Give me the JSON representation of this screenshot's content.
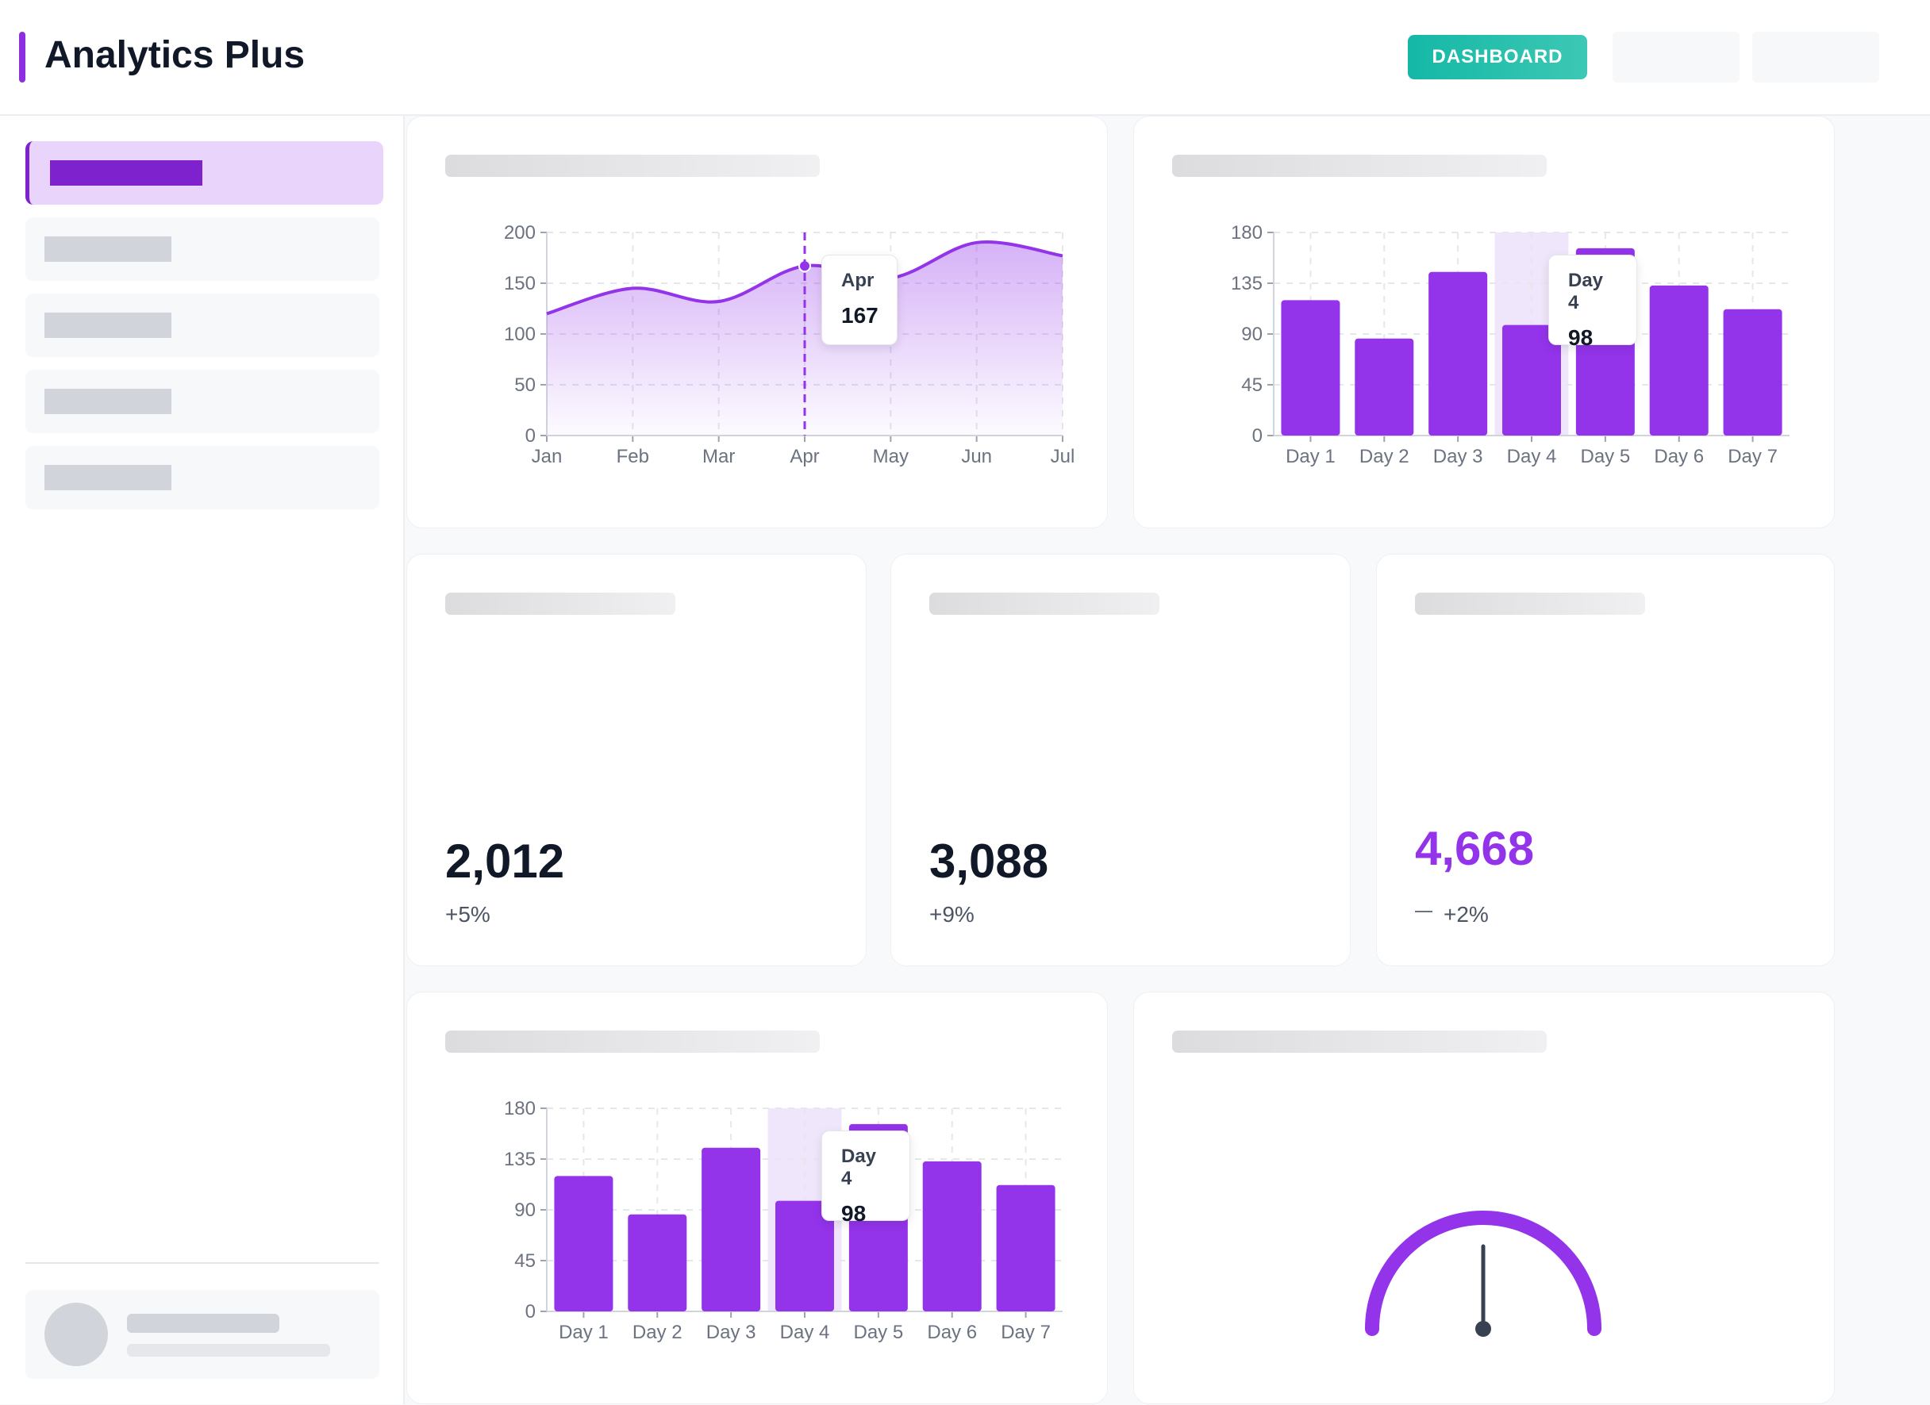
{
  "header": {
    "app_title": "Analytics Plus",
    "nav_active_label": "DASHBOARD"
  },
  "kpis": [
    {
      "value": "2,012",
      "change": "+5%"
    },
    {
      "value": "3,088",
      "change": "+9%"
    },
    {
      "value": "4,668",
      "change": "+2%",
      "trend_icon": "dash-icon"
    }
  ],
  "colors": {
    "accent": "#9333ea",
    "accent_dark": "#7e22ce",
    "nav_teal": "#14b8a6",
    "highlight": "#f0e6fb"
  },
  "chart_data": [
    {
      "type": "area",
      "title": "",
      "categories": [
        "Jan",
        "Feb",
        "Mar",
        "Apr",
        "May",
        "Jun",
        "Jul"
      ],
      "values": [
        120,
        145,
        132,
        167,
        155,
        190,
        177
      ],
      "y_ticks": [
        "0",
        "50",
        "100",
        "150",
        "200"
      ],
      "ylim": [
        0,
        200
      ],
      "grid": true,
      "tooltip": {
        "label": "Apr",
        "value": "167"
      }
    },
    {
      "type": "bar",
      "title": "",
      "categories": [
        "Day 1",
        "Day 2",
        "Day 3",
        "Day 4",
        "Day 5",
        "Day 6",
        "Day 7"
      ],
      "values": [
        120,
        86,
        145,
        98,
        166,
        133,
        112
      ],
      "y_ticks": [
        "0",
        "45",
        "90",
        "135",
        "180"
      ],
      "ylim": [
        0,
        180
      ],
      "grid": true,
      "highlight_index": 3,
      "tooltip": {
        "label": "Day 4",
        "value": "98"
      }
    },
    {
      "type": "bar",
      "title": "",
      "categories": [
        "Day 1",
        "Day 2",
        "Day 3",
        "Day 4",
        "Day 5",
        "Day 6",
        "Day 7"
      ],
      "values": [
        120,
        86,
        145,
        98,
        166,
        133,
        112
      ],
      "y_ticks": [
        "0",
        "45",
        "90",
        "135",
        "180"
      ],
      "ylim": [
        0,
        180
      ],
      "grid": true,
      "highlight_index": 3,
      "tooltip": {
        "label": "Day 4",
        "value": "98"
      }
    },
    {
      "type": "gauge",
      "title": "",
      "value": 50,
      "min": 0,
      "max": 100
    }
  ]
}
